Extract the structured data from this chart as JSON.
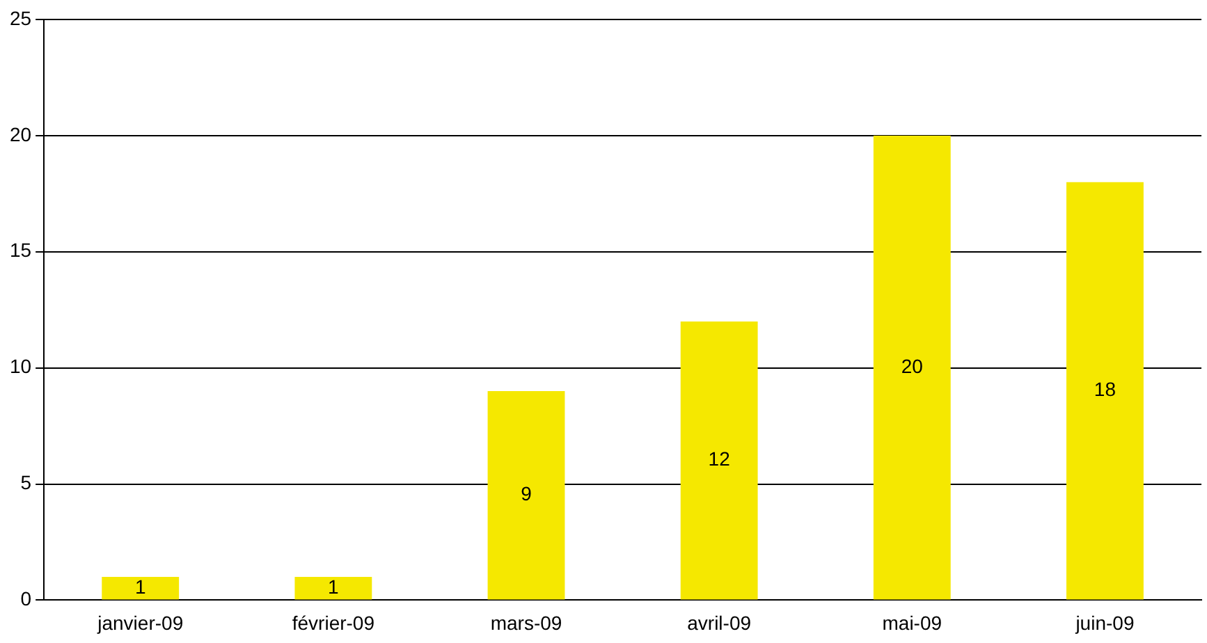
{
  "chart_data": {
    "type": "bar",
    "categories": [
      "janvier-09",
      "février-09",
      "mars-09",
      "avril-09",
      "mai-09",
      "juin-09"
    ],
    "values": [
      1,
      1,
      9,
      12,
      20,
      18
    ],
    "color": "#f5e800",
    "ylim": [
      0,
      25
    ],
    "yticks": [
      0,
      5,
      10,
      15,
      20,
      25
    ],
    "grid": "y",
    "data_labels": true,
    "legend": false
  }
}
